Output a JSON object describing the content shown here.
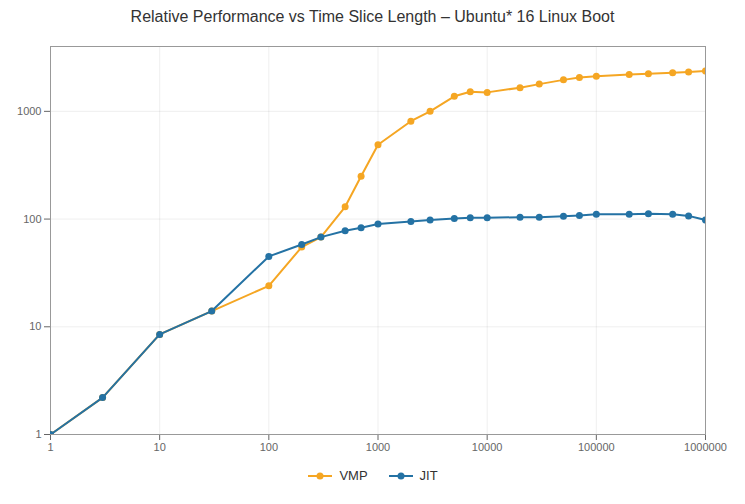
{
  "chart_data": {
    "type": "line",
    "title": "Relative Performance vs Time Slice Length – Ubuntu* 16 Linux Boot",
    "x": [
      1,
      3,
      10,
      30,
      100,
      200,
      300,
      500,
      700,
      1000,
      2000,
      3000,
      5000,
      7000,
      10000,
      20000,
      30000,
      50000,
      70000,
      100000,
      200000,
      300000,
      500000,
      700000,
      1000000
    ],
    "series": [
      {
        "name": "VMP",
        "color": "#f5a623",
        "marker": "circle",
        "values": [
          1,
          2.2,
          8.5,
          14,
          24,
          55,
          68,
          130,
          250,
          490,
          810,
          1000,
          1380,
          1520,
          1500,
          1660,
          1790,
          1960,
          2060,
          2120,
          2200,
          2230,
          2280,
          2320,
          2370
        ]
      },
      {
        "name": "JIT",
        "color": "#2472a4",
        "marker": "circle",
        "values": [
          1,
          2.2,
          8.5,
          14,
          45,
          58,
          68,
          78,
          83,
          90,
          95,
          98,
          101,
          103,
          103,
          104,
          104,
          106,
          108,
          111,
          111,
          112,
          111,
          107,
          98
        ]
      }
    ],
    "xlim": [
      1,
      1000000
    ],
    "ylim": [
      1,
      4000
    ],
    "xticks": [
      1,
      10,
      100,
      1000,
      10000,
      100000,
      1000000
    ],
    "yticks": [
      1,
      10,
      100,
      1000
    ],
    "log": true,
    "grid": true,
    "legend": "bottom"
  }
}
